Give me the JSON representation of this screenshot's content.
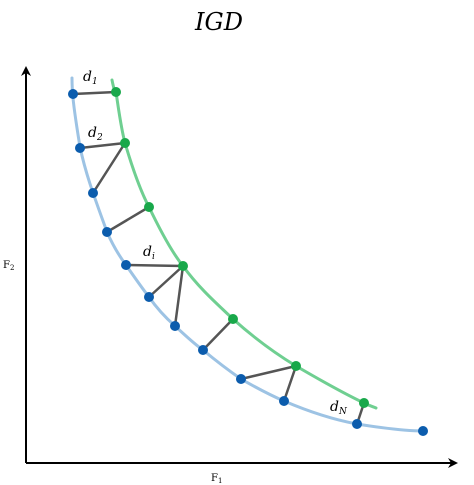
{
  "title": "IGD",
  "axes": {
    "x_label": "F",
    "x_sub": "1",
    "y_label": "F",
    "y_sub": "2"
  },
  "distance_labels": [
    {
      "base": "d",
      "sub": "1"
    },
    {
      "base": "d",
      "sub": "2"
    },
    {
      "base": "d",
      "sub": "i"
    },
    {
      "base": "d",
      "sub": "N"
    }
  ],
  "colors": {
    "true_front": "#9dc3e4",
    "approx_front": "#6fcf91",
    "reference_point": "#0b5cad",
    "solution_point": "#18a84a",
    "distance_link": "#555555",
    "axis": "#000000"
  },
  "legend": []
}
